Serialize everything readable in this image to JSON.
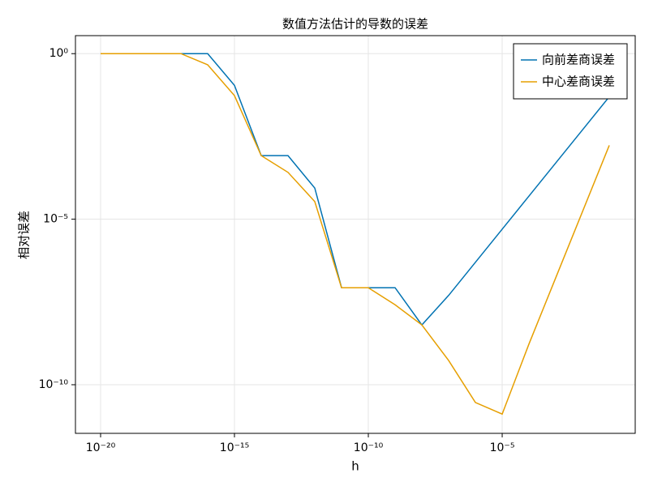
{
  "chart_data": {
    "type": "line",
    "title": "数值方法估计的导数的误差",
    "xlabel": "h",
    "ylabel": "相对误差",
    "xscale": "log",
    "yscale": "log",
    "grid": true,
    "legend": "top-right",
    "x": [
      1e-20,
      1e-19,
      1e-18,
      1e-17,
      1e-16,
      1e-15,
      1e-14,
      1e-13,
      1e-12,
      1e-11,
      1e-10,
      1e-09,
      1e-08,
      1e-07,
      1e-06,
      1e-05,
      0.0001,
      0.001,
      0.01,
      0.1
    ],
    "series": [
      {
        "name": "向前差商误差",
        "color": "#0072b2",
        "values": [
          1,
          1,
          1,
          1,
          1,
          0.11,
          0.00083,
          0.00083,
          8.7e-05,
          8.5e-08,
          8.5e-08,
          8.5e-08,
          6.4e-09,
          5e-08,
          5e-07,
          5e-06,
          5e-05,
          0.0005,
          0.005,
          0.05
        ]
      },
      {
        "name": "中心差商误差",
        "color": "#e69f00",
        "values": [
          1,
          1,
          1,
          1,
          0.46,
          0.054,
          0.00083,
          0.00026,
          3.4e-05,
          8.5e-08,
          8.5e-08,
          2.6e-08,
          6.4e-09,
          5.4e-10,
          2.9e-11,
          1.3e-11,
          1.7e-09,
          1.7e-07,
          1.7e-05,
          0.0017
        ]
      }
    ],
    "xlim": [
      1.15e-21,
      0.93
    ],
    "ylim": [
      3.4e-12,
      3.5
    ],
    "xticks": [
      {
        "value": 1e-20,
        "label": "10⁻²⁰"
      },
      {
        "value": 1e-15,
        "label": "10⁻¹⁵"
      },
      {
        "value": 1e-10,
        "label": "10⁻¹⁰"
      },
      {
        "value": 1e-05,
        "label": "10⁻⁵"
      }
    ],
    "yticks": [
      {
        "value": 1,
        "label": "10⁰"
      },
      {
        "value": 1e-05,
        "label": "10⁻⁵"
      },
      {
        "value": 1e-10,
        "label": "10⁻¹⁰"
      }
    ]
  }
}
